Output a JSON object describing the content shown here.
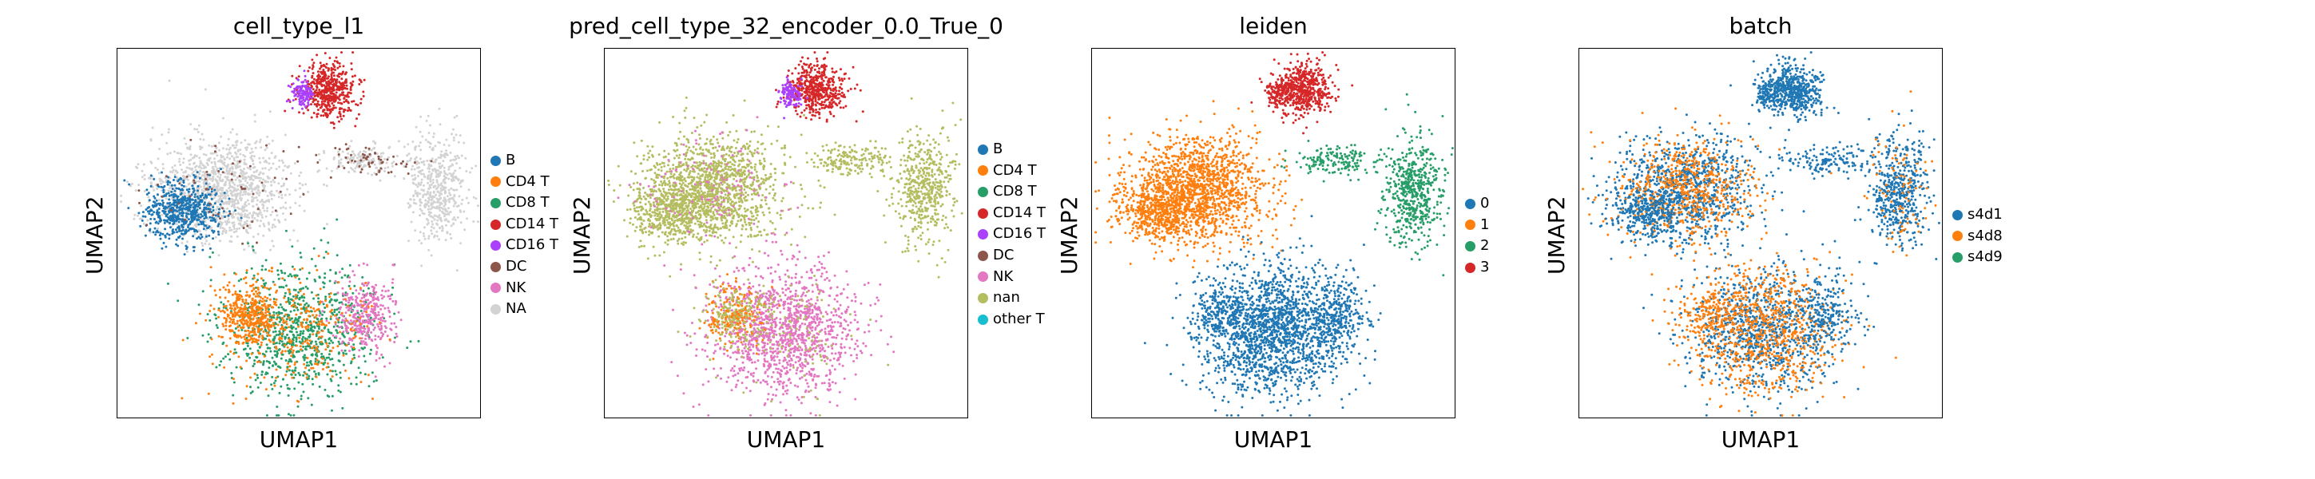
{
  "chart_data": [
    {
      "type": "scatter",
      "title": "cell_type_l1",
      "xlabel": "UMAP1",
      "ylabel": "UMAP2",
      "legend_placement": "right",
      "legend": [
        {
          "name": "B",
          "color": "#1f77b4"
        },
        {
          "name": "CD4 T",
          "color": "#ff7f0e"
        },
        {
          "name": "CD8 T",
          "color": "#279e68"
        },
        {
          "name": "CD14 T",
          "color": "#d62728"
        },
        {
          "name": "CD16 T",
          "color": "#aa40fc"
        },
        {
          "name": "DC",
          "color": "#8c564b"
        },
        {
          "name": "NK",
          "color": "#e377c2"
        },
        {
          "name": "NA",
          "color": "#d3d3d3"
        }
      ]
    },
    {
      "type": "scatter",
      "title": "pred_cell_type_32_encoder_0.0_True_0",
      "xlabel": "UMAP1",
      "ylabel": "UMAP2",
      "legend_placement": "right",
      "legend": [
        {
          "name": "B",
          "color": "#1f77b4"
        },
        {
          "name": "CD4 T",
          "color": "#ff7f0e"
        },
        {
          "name": "CD8 T",
          "color": "#279e68"
        },
        {
          "name": "CD14 T",
          "color": "#d62728"
        },
        {
          "name": "CD16 T",
          "color": "#aa40fc"
        },
        {
          "name": "DC",
          "color": "#8c564b"
        },
        {
          "name": "NK",
          "color": "#e377c2"
        },
        {
          "name": "nan",
          "color": "#b5bd61"
        },
        {
          "name": "other T",
          "color": "#17becf"
        }
      ]
    },
    {
      "type": "scatter",
      "title": "leiden",
      "xlabel": "UMAP1",
      "ylabel": "UMAP2",
      "legend_placement": "right",
      "legend": [
        {
          "name": "0",
          "color": "#1f77b4"
        },
        {
          "name": "1",
          "color": "#ff7f0e"
        },
        {
          "name": "2",
          "color": "#279e68"
        },
        {
          "name": "3",
          "color": "#d62728"
        }
      ]
    },
    {
      "type": "scatter",
      "title": "batch",
      "xlabel": "UMAP1",
      "ylabel": "UMAP2",
      "legend_placement": "right",
      "legend": [
        {
          "name": "s4d1",
          "color": "#1f77b4"
        },
        {
          "name": "s4d8",
          "color": "#ff7f0e"
        },
        {
          "name": "s4d9",
          "color": "#279e68"
        }
      ]
    }
  ]
}
